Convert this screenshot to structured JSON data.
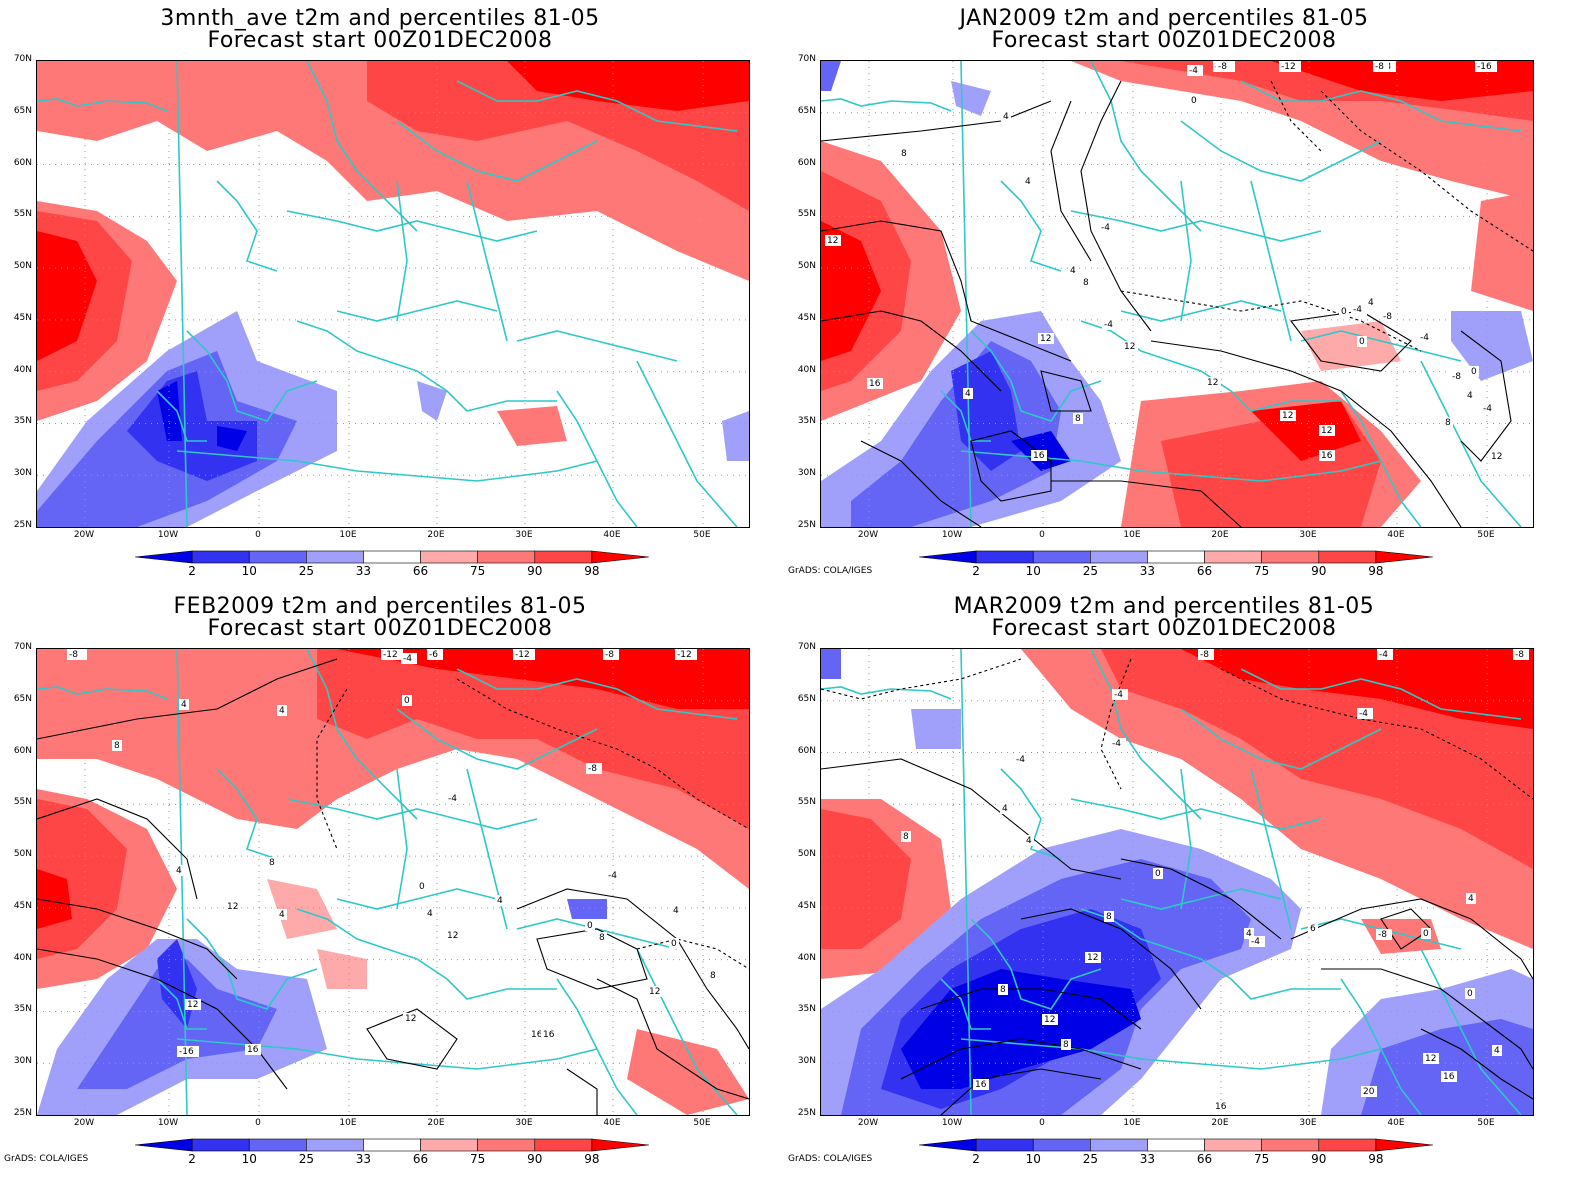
{
  "panels": [
    {
      "title1": "3mnth_ave t2m and percentiles 81-05",
      "title2": "Forecast start 00Z01DEC2008",
      "credit": ""
    },
    {
      "title1": "JAN2009 t2m and percentiles 81-05",
      "title2": "Forecast start 00Z01DEC2008",
      "credit": "GrADS: COLA/IGES"
    },
    {
      "title1": "FEB2009 t2m and percentiles 81-05",
      "title2": "Forecast start 00Z01DEC2008",
      "credit": "GrADS: COLA/IGES"
    },
    {
      "title1": "MAR2009 t2m and percentiles 81-05",
      "title2": "Forecast start 00Z01DEC2008",
      "credit": "GrADS: COLA/IGES"
    }
  ],
  "lat_labels": [
    "70N",
    "65N",
    "60N",
    "55N",
    "50N",
    "45N",
    "40N",
    "35N",
    "30N",
    "25N"
  ],
  "lon_labels": [
    "20W",
    "10W",
    "0",
    "10E",
    "20E",
    "30E",
    "40E",
    "50E"
  ],
  "colorbar": {
    "labels": [
      "2",
      "10",
      "25",
      "33",
      "66",
      "75",
      "90",
      "98"
    ],
    "colors": [
      "#0000e6",
      "#3232f0",
      "#6464f5",
      "#a0a0fa",
      "#ffffff",
      "#ffaaaa",
      "#ff7878",
      "#ff4646",
      "#ff0000"
    ]
  },
  "colors": {
    "coast": "#2fc8c8",
    "contour": "#000000"
  },
  "contour_labels": {
    "jan": [
      "-12",
      "-12",
      "-8",
      "-4",
      "-8",
      "-16",
      "0",
      "-8",
      "4",
      "8",
      "12",
      "4",
      "4",
      "-4",
      "8",
      "12",
      "4",
      "12",
      "16",
      "12",
      "12",
      "12",
      "16",
      "8",
      "16",
      "-4",
      "0",
      "-4",
      "0",
      "4",
      "-8",
      "-4",
      "-8",
      "0",
      "4",
      "-4",
      "8",
      "12"
    ],
    "feb": [
      "-4",
      "-8",
      "-12",
      "-6",
      "-4",
      "-12",
      "-8",
      "-12",
      "0",
      "4",
      "4",
      "8",
      "-8",
      "-4",
      "4",
      "4",
      "8",
      "12",
      "4",
      "4",
      "12",
      "8",
      "12",
      "12",
      "16",
      "-16",
      "16",
      "0",
      "-4",
      "0",
      "4",
      "0",
      "8",
      "12",
      "16"
    ],
    "mar": [
      "-8",
      "-4",
      "-8",
      "-4",
      "-4",
      "-4",
      "-4",
      "4",
      "8",
      "4",
      "0",
      "8",
      "4",
      "12",
      "8",
      "8",
      "12",
      "16",
      "12",
      "16",
      "20",
      "-4",
      "6",
      "-8",
      "0",
      "4",
      "0",
      "12",
      "16",
      "4",
      "16"
    ]
  }
}
